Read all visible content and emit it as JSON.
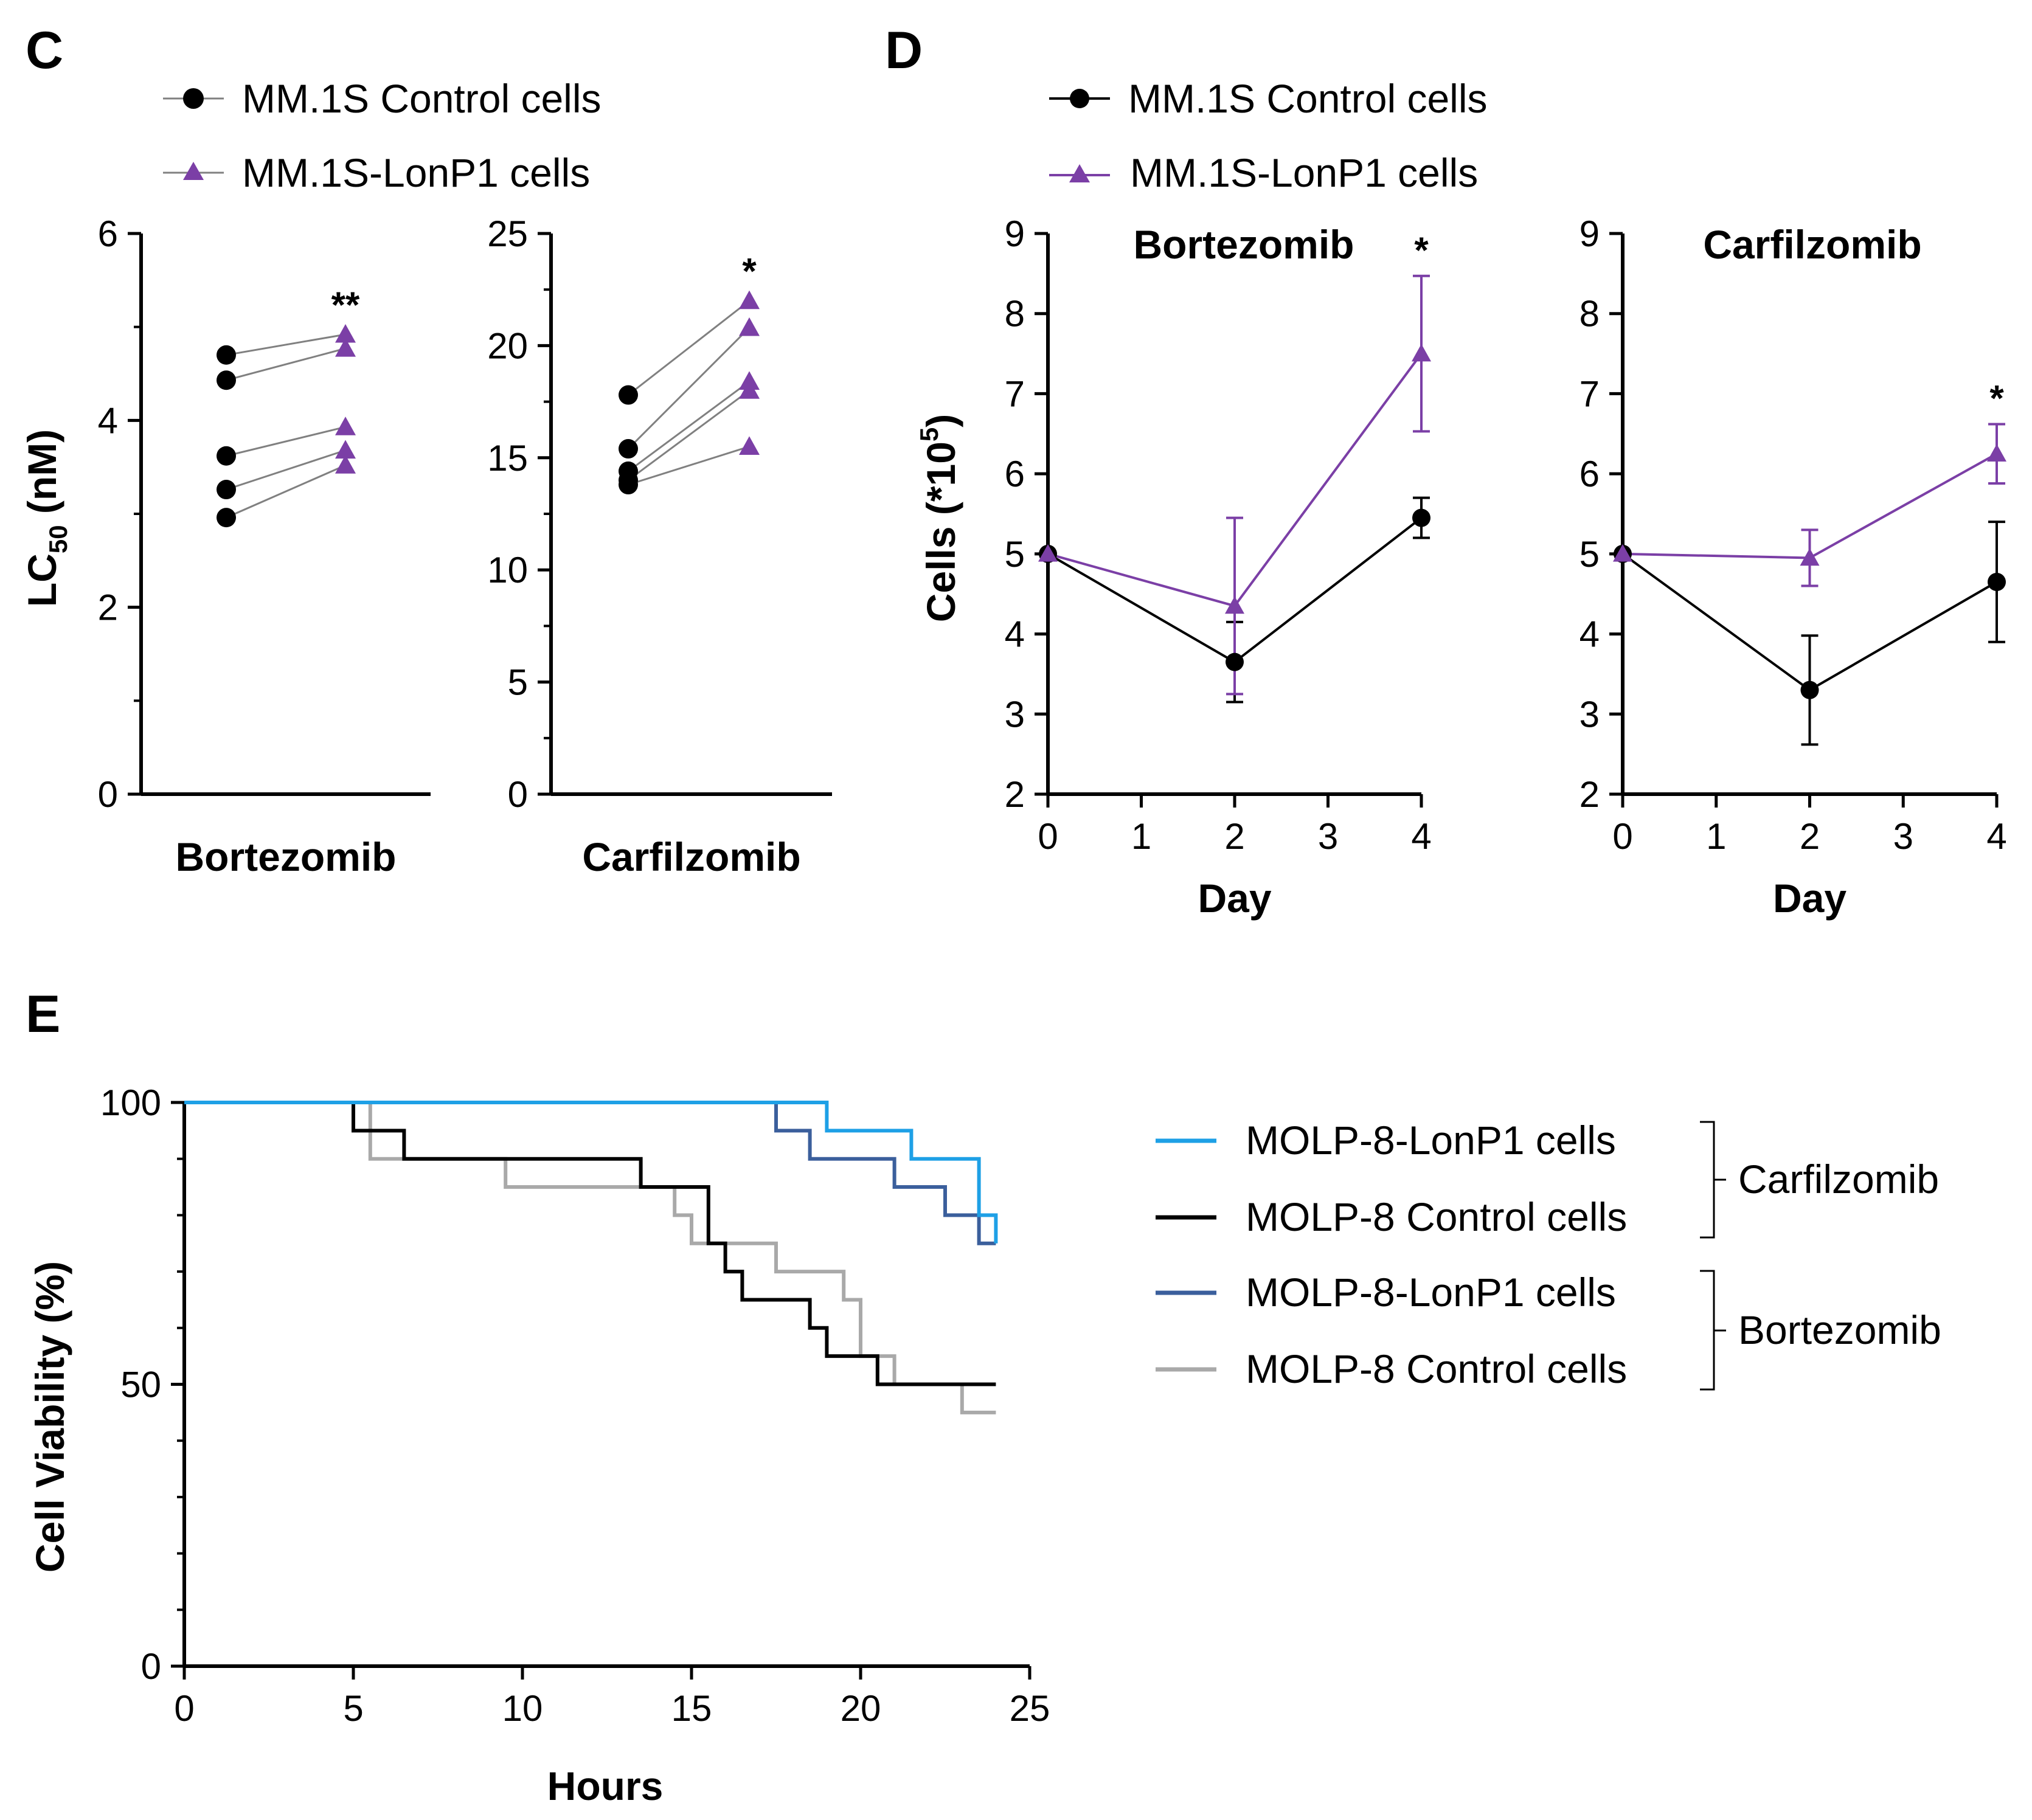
{
  "colors": {
    "control": "#000000",
    "lonp1": "#7b3fa6",
    "carf_lonp1": "#1ea0e6",
    "carf_control": "#000000",
    "bort_lonp1": "#3b5f9c",
    "bort_control": "#a9a9a9",
    "pair_line": "#808080"
  },
  "chart_data": [
    {
      "type": "scatter",
      "panel": "C",
      "legend": [
        {
          "label": "MM.1S Control cells",
          "marker": "circle",
          "color": "#000000"
        },
        {
          "label": "MM.1S-LonP1 cells",
          "marker": "triangle",
          "color": "#7b3fa6"
        }
      ],
      "subplots": [
        {
          "xlabel": "Bortezomib",
          "ylabel": "LC",
          "ylabel_sub": "50",
          "ylabel_unit": " (nM)",
          "ylim": [
            0,
            6
          ],
          "yticks": [
            "0",
            "2",
            "4",
            "6"
          ],
          "yminor": [
            1,
            3,
            5
          ],
          "significance": "**",
          "pairs": [
            {
              "control": 4.7,
              "lonp1": 4.92
            },
            {
              "control": 4.43,
              "lonp1": 4.77
            },
            {
              "control": 3.62,
              "lonp1": 3.93
            },
            {
              "control": 3.26,
              "lonp1": 3.68
            },
            {
              "control": 2.96,
              "lonp1": 3.52
            }
          ]
        },
        {
          "xlabel": "Carfilzomib",
          "ylim": [
            0,
            25
          ],
          "yticks": [
            "0",
            "5",
            "10",
            "15",
            "20",
            "25"
          ],
          "yminor": [
            2.5,
            7.5,
            12.5,
            17.5,
            22.5
          ],
          "significance": "*",
          "pairs": [
            {
              "control": 17.8,
              "lonp1": 22.0
            },
            {
              "control": 15.4,
              "lonp1": 20.8
            },
            {
              "control": 14.4,
              "lonp1": 18.4
            },
            {
              "control": 14.0,
              "lonp1": 18.0
            },
            {
              "control": 13.8,
              "lonp1": 15.5
            }
          ]
        }
      ]
    },
    {
      "type": "line",
      "panel": "D",
      "legend": [
        {
          "label": "MM.1S Control cells",
          "marker": "circle",
          "color": "#000000"
        },
        {
          "label": "MM.1S-LonP1 cells",
          "marker": "triangle",
          "color": "#7b3fa6"
        }
      ],
      "ylabel": "Cells (*10",
      "ylabel_sup": "5",
      "ylabel_end": ")",
      "subplots": [
        {
          "title": "Bortezomib",
          "xlabel": "Day",
          "x": [
            0,
            2,
            4
          ],
          "xlim": [
            0,
            4
          ],
          "xticks": [
            "0",
            "1",
            "2",
            "3",
            "4"
          ],
          "ylim": [
            2,
            9
          ],
          "yticks": [
            "2",
            "3",
            "4",
            "5",
            "6",
            "7",
            "8",
            "9"
          ],
          "significance": [
            {
              "x": 4,
              "label": "*"
            }
          ],
          "series": [
            {
              "name": "MM.1S Control cells",
              "values": [
                5.0,
                3.65,
                5.45
              ],
              "err": [
                0,
                0.5,
                0.25
              ]
            },
            {
              "name": "MM.1S-LonP1 cells",
              "values": [
                5.0,
                4.35,
                7.5
              ],
              "err": [
                0,
                1.1,
                0.97
              ]
            }
          ]
        },
        {
          "title": "Carfilzomib",
          "xlabel": "Day",
          "x": [
            0,
            2,
            4
          ],
          "xlim": [
            0,
            4
          ],
          "xticks": [
            "0",
            "1",
            "2",
            "3",
            "4"
          ],
          "ylim": [
            2,
            9
          ],
          "yticks": [
            "2",
            "3",
            "4",
            "5",
            "6",
            "7",
            "8",
            "9"
          ],
          "significance": [
            {
              "x": 4,
              "label": "*"
            }
          ],
          "series": [
            {
              "name": "MM.1S Control cells",
              "values": [
                5.0,
                3.3,
                4.65
              ],
              "err": [
                0,
                0.68,
                0.75
              ]
            },
            {
              "name": "MM.1S-LonP1 cells",
              "values": [
                5.0,
                4.95,
                6.25
              ],
              "err": [
                0,
                0.35,
                0.37
              ]
            }
          ]
        }
      ]
    },
    {
      "type": "line",
      "subtype": "step",
      "panel": "E",
      "xlabel": "Hours",
      "ylabel": "Cell Viability (%)",
      "xlim": [
        0,
        25
      ],
      "xticks": [
        "0",
        "5",
        "10",
        "15",
        "20",
        "25"
      ],
      "ylim": [
        0,
        100
      ],
      "yticks": [
        "0",
        "50",
        "100"
      ],
      "yminor": [
        10,
        20,
        30,
        40,
        60,
        70,
        80,
        90
      ],
      "groups": [
        {
          "label": "Carfilzomib",
          "members": [
            "MOLP-8-LonP1 cells",
            "MOLP-8 Control cells"
          ]
        },
        {
          "label": "Bortezomib",
          "members": [
            "MOLP-8-LonP1 cells",
            "MOLP-8 Control cells"
          ]
        }
      ],
      "series": [
        {
          "name": "MOLP-8-LonP1 cells",
          "treatment": "Carfilzomib",
          "color": "#1ea0e6",
          "x": [
            0,
            19,
            21.5,
            23.5,
            24
          ],
          "y": [
            100,
            95,
            90,
            80,
            75
          ]
        },
        {
          "name": "MOLP-8 Control cells",
          "treatment": "Carfilzomib",
          "color": "#000000",
          "x": [
            0,
            5,
            6.5,
            13.5,
            15.5,
            16,
            16.5,
            18.5,
            19,
            20.5,
            24
          ],
          "y": [
            100,
            95,
            90,
            85,
            75,
            70,
            65,
            60,
            55,
            50,
            50
          ]
        },
        {
          "name": "MOLP-8-LonP1 cells",
          "treatment": "Bortezomib",
          "color": "#3b5f9c",
          "x": [
            0,
            17.5,
            18.5,
            21,
            22.5,
            23.5,
            24
          ],
          "y": [
            100,
            95,
            90,
            85,
            80,
            75,
            75
          ]
        },
        {
          "name": "MOLP-8 Control cells",
          "treatment": "Bortezomib",
          "color": "#a9a9a9",
          "x": [
            0,
            5.5,
            9.5,
            14.5,
            15,
            17.5,
            19.5,
            20,
            21,
            23,
            24
          ],
          "y": [
            100,
            90,
            85,
            80,
            75,
            70,
            65,
            55,
            50,
            45,
            45
          ]
        }
      ]
    }
  ]
}
